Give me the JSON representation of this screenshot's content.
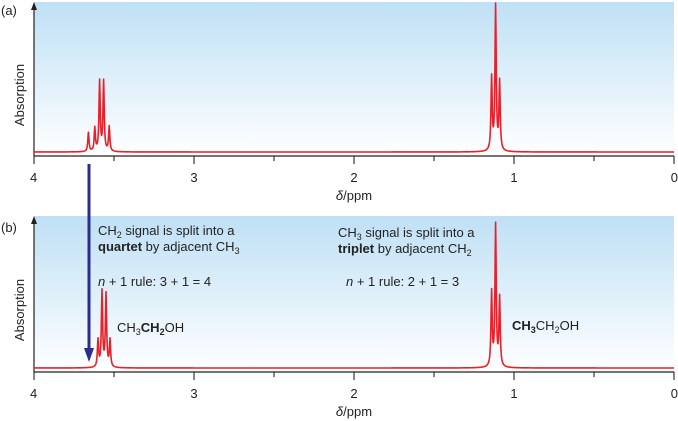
{
  "chart_data": [
    {
      "type": "line",
      "panel_label": "(a)",
      "xlabel_symbol": "δ",
      "xlabel_unit": "/ppm",
      "ylabel": "Absorption",
      "xlim": [
        4,
        0
      ],
      "x_reversed": true,
      "x_ticks": [
        4,
        3,
        2,
        1,
        0
      ],
      "grid": false,
      "peaks": [
        {
          "x": 3.66,
          "h": 0.13
        },
        {
          "x": 3.62,
          "h": 0.16
        },
        {
          "x": 3.59,
          "h": 0.48
        },
        {
          "x": 3.565,
          "h": 0.48
        },
        {
          "x": 3.53,
          "h": 0.17
        },
        {
          "x": 1.14,
          "h": 0.5
        },
        {
          "x": 1.115,
          "h": 1.0
        },
        {
          "x": 1.09,
          "h": 0.47
        }
      ],
      "line_color": "#e8202a",
      "background_gradient": [
        "#bfe0f5",
        "#ffffff"
      ]
    },
    {
      "type": "line",
      "panel_label": "(b)",
      "xlabel_symbol": "δ",
      "xlabel_unit": "/ppm",
      "ylabel": "Absorption",
      "xlim": [
        4,
        0
      ],
      "x_reversed": true,
      "x_ticks": [
        4,
        3,
        2,
        1,
        0
      ],
      "grid": false,
      "peaks": [
        {
          "x": 3.6,
          "h": 0.19
        },
        {
          "x": 3.575,
          "h": 0.53
        },
        {
          "x": 3.55,
          "h": 0.51
        },
        {
          "x": 3.525,
          "h": 0.19
        },
        {
          "x": 1.14,
          "h": 0.52
        },
        {
          "x": 1.115,
          "h": 1.0
        },
        {
          "x": 1.09,
          "h": 0.48
        }
      ],
      "line_color": "#e8202a",
      "background_gradient": [
        "#bfe0f5",
        "#ffffff"
      ],
      "arrow_color": "#2b2d8c",
      "annotations": {
        "ch2": {
          "line1": {
            "a": "CH",
            "sub": "2",
            "b": " signal is split into a"
          },
          "line2": {
            "bold": "quartet",
            "rest": " by adjacent CH",
            "sub": "3"
          },
          "rule": {
            "n": "n",
            "text": " + 1 rule: 3 + 1 = 4"
          },
          "formula": {
            "a": "CH",
            "sub1": "3",
            "bold": "CH",
            "sub2": "2",
            "c": "OH"
          }
        },
        "ch3": {
          "line1": {
            "a": "CH",
            "sub": "3",
            "b": " signal is split into a"
          },
          "line2": {
            "bold": "triplet",
            "rest": " by adjacent CH",
            "sub": "2"
          },
          "rule": {
            "n": "n",
            "text": " + 1 rule: 2 + 1 = 3"
          },
          "formula": {
            "bold": "CH",
            "sub1": "3",
            "a": "CH",
            "sub2": "2",
            "c": "OH"
          }
        }
      }
    }
  ]
}
